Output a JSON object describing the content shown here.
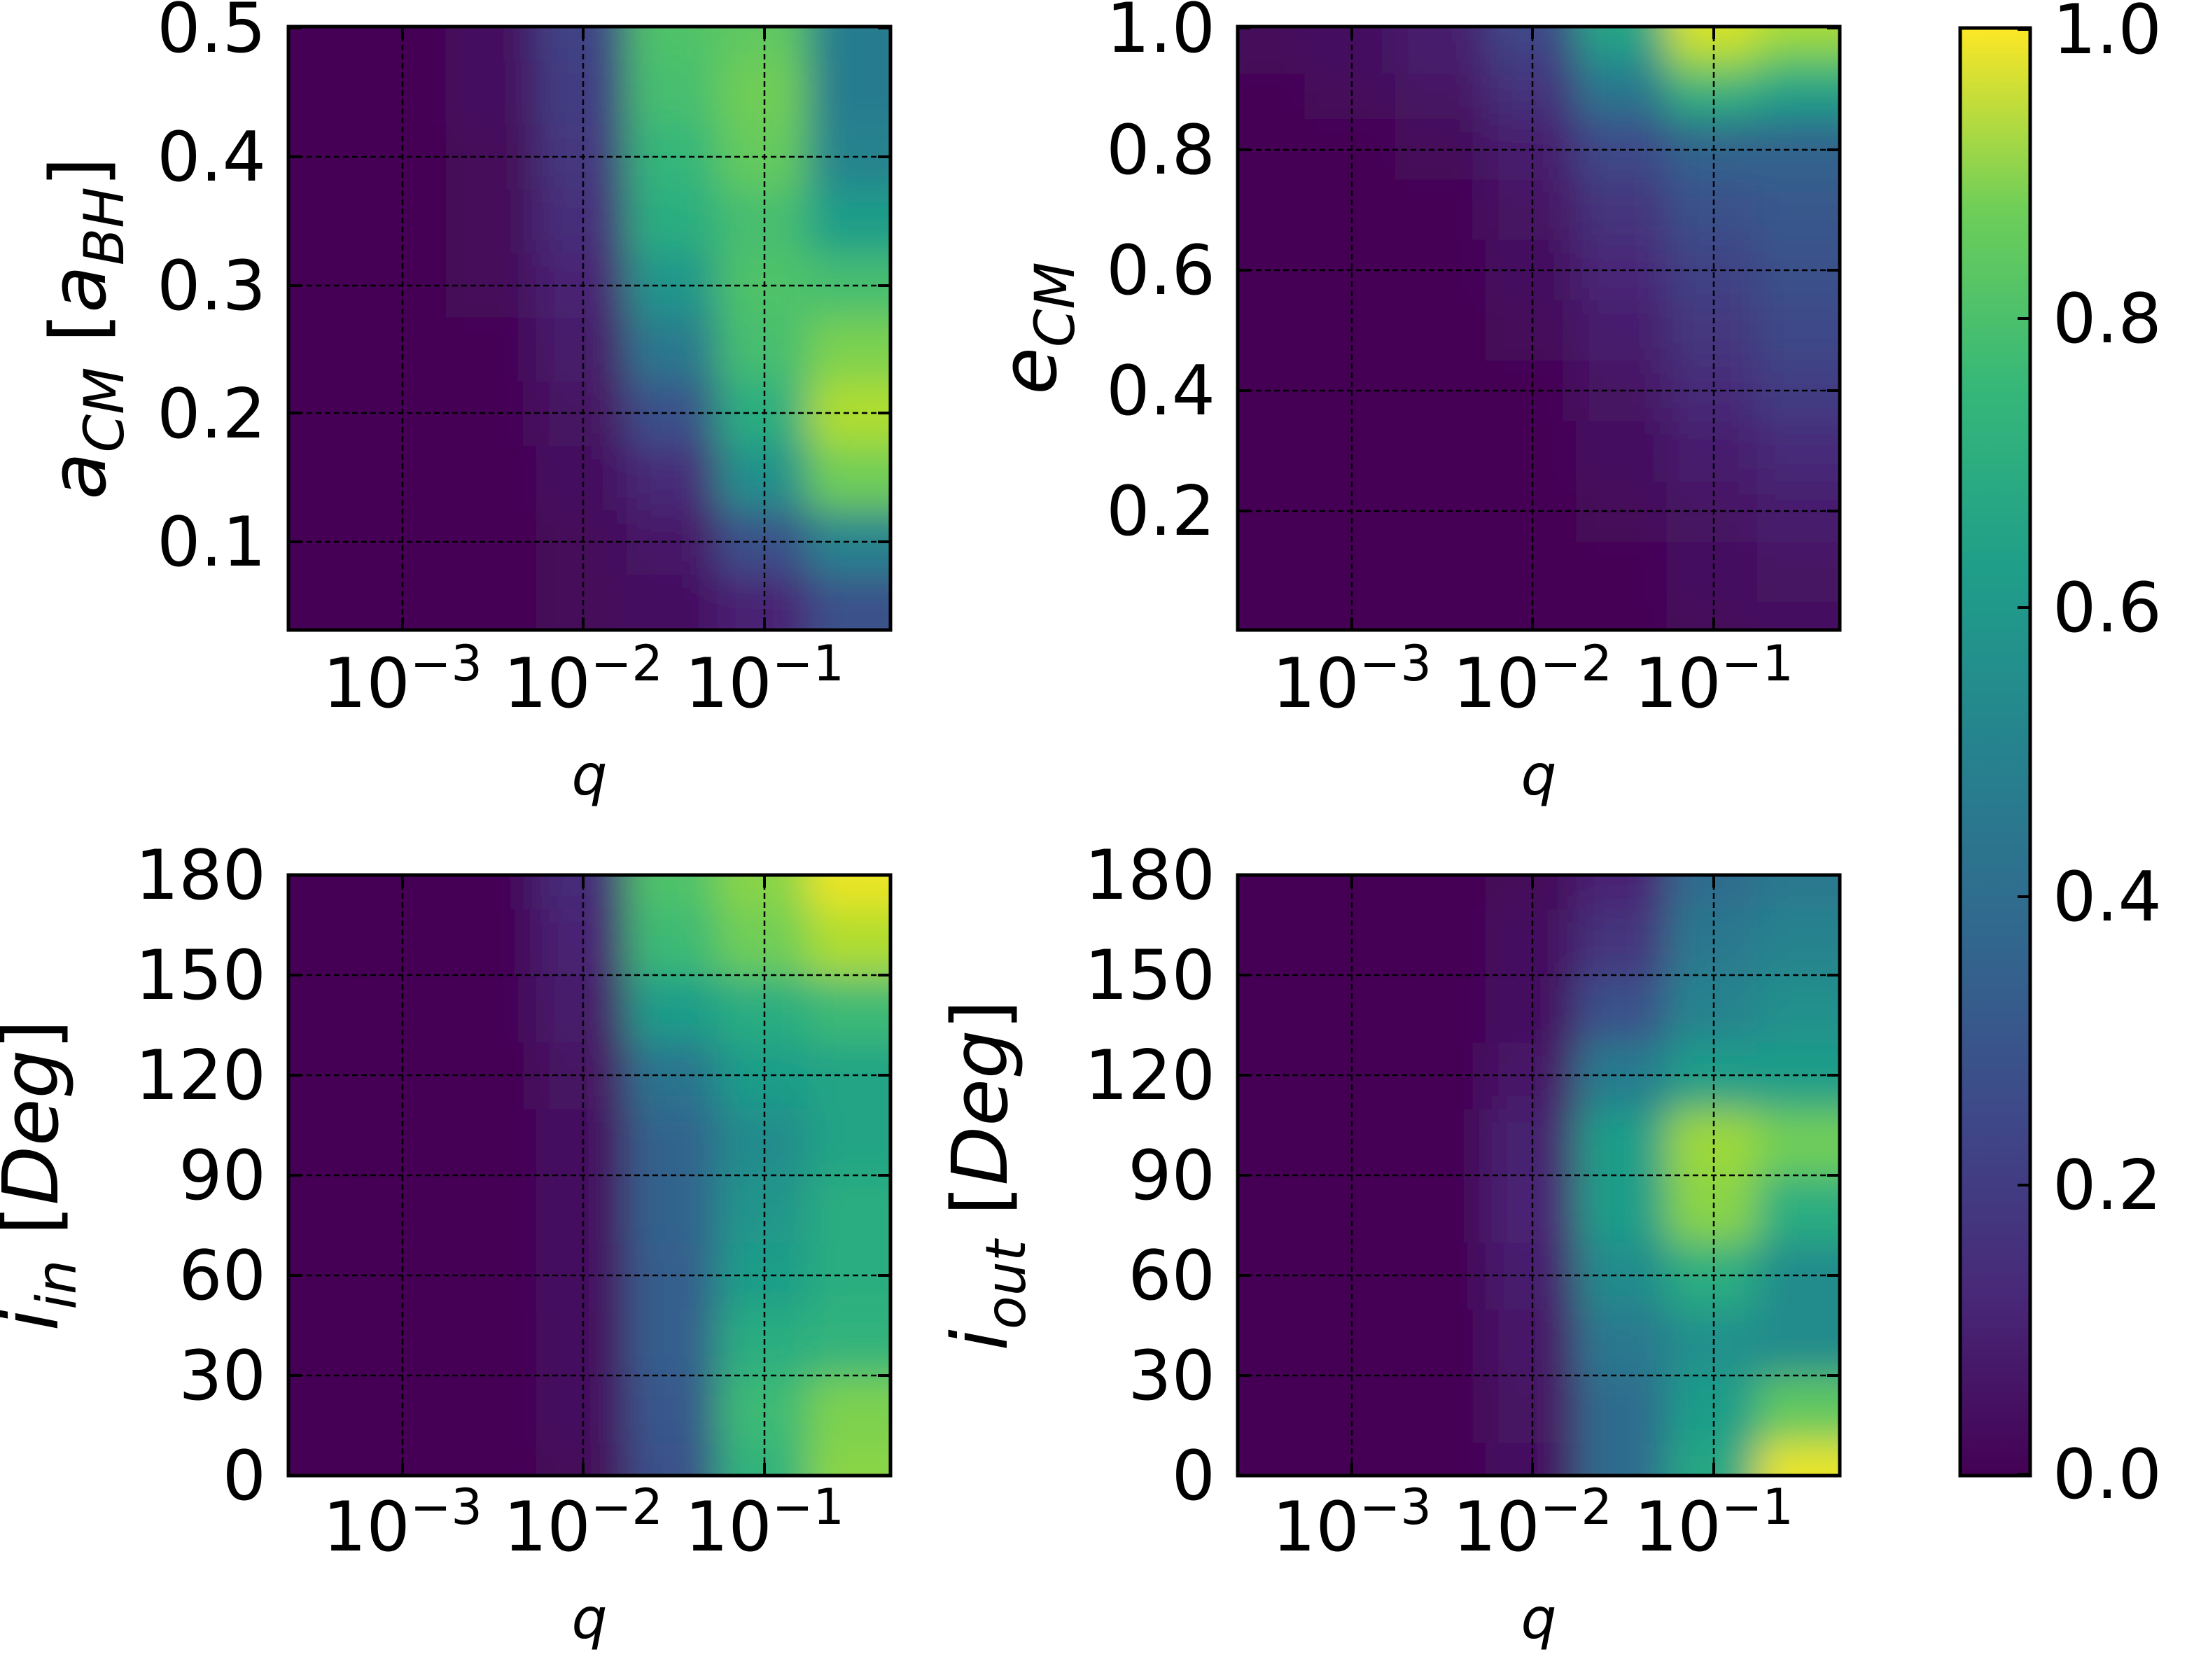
{
  "chart_data": [
    {
      "type": "heatmap",
      "panel": "top-left",
      "xlabel": "q",
      "ylabel": "a_CM [a_BH]",
      "xscale": "log",
      "x_ticks": [
        "10^-3",
        "10^-2",
        "10^-1"
      ],
      "y_ticks": [
        "0.1",
        "0.2",
        "0.3",
        "0.4",
        "0.5"
      ],
      "ylim": [
        0.03,
        0.5
      ],
      "grid": true,
      "x": [
        0.0003,
        0.001,
        0.003,
        0.01,
        0.03,
        0.1,
        0.3
      ],
      "y": [
        0.05,
        0.1,
        0.15,
        0.2,
        0.25,
        0.3,
        0.35,
        0.4,
        0.45,
        0.5
      ],
      "z": [
        [
          0.0,
          0.0,
          0.0,
          0.02,
          0.04,
          0.1,
          0.25
        ],
        [
          0.0,
          0.0,
          0.0,
          0.02,
          0.06,
          0.25,
          0.45
        ],
        [
          0.0,
          0.0,
          0.0,
          0.03,
          0.12,
          0.5,
          0.78
        ],
        [
          0.0,
          0.0,
          0.01,
          0.05,
          0.25,
          0.62,
          0.88
        ],
        [
          0.0,
          0.0,
          0.01,
          0.07,
          0.4,
          0.7,
          0.8
        ],
        [
          0.0,
          0.0,
          0.02,
          0.1,
          0.52,
          0.72,
          0.7
        ],
        [
          0.0,
          0.0,
          0.02,
          0.13,
          0.62,
          0.7,
          0.55
        ],
        [
          0.0,
          0.0,
          0.02,
          0.16,
          0.66,
          0.76,
          0.45
        ],
        [
          0.0,
          0.0,
          0.03,
          0.18,
          0.7,
          0.78,
          0.42
        ],
        [
          0.0,
          0.0,
          0.03,
          0.2,
          0.72,
          0.75,
          0.42
        ]
      ]
    },
    {
      "type": "heatmap",
      "panel": "top-right",
      "xlabel": "q",
      "ylabel": "e_CM",
      "xscale": "log",
      "x_ticks": [
        "10^-3",
        "10^-2",
        "10^-1"
      ],
      "y_ticks": [
        "0.2",
        "0.4",
        "0.6",
        "0.8",
        "1.0"
      ],
      "ylim": [
        0.0,
        1.0
      ],
      "grid": true,
      "x": [
        0.0003,
        0.001,
        0.003,
        0.01,
        0.03,
        0.1,
        0.3
      ],
      "y": [
        0.0,
        0.1,
        0.2,
        0.3,
        0.4,
        0.5,
        0.6,
        0.7,
        0.8,
        0.9,
        0.95,
        1.0
      ],
      "z": [
        [
          0.0,
          0.0,
          0.0,
          0.0,
          0.01,
          0.02,
          0.03
        ],
        [
          0.0,
          0.0,
          0.0,
          0.0,
          0.01,
          0.03,
          0.05
        ],
        [
          0.0,
          0.0,
          0.0,
          0.0,
          0.02,
          0.05,
          0.08
        ],
        [
          0.0,
          0.0,
          0.0,
          0.01,
          0.03,
          0.08,
          0.12
        ],
        [
          0.0,
          0.0,
          0.0,
          0.01,
          0.05,
          0.12,
          0.18
        ],
        [
          0.0,
          0.0,
          0.0,
          0.02,
          0.08,
          0.16,
          0.22
        ],
        [
          0.0,
          0.0,
          0.01,
          0.03,
          0.11,
          0.2,
          0.25
        ],
        [
          0.0,
          0.0,
          0.01,
          0.05,
          0.15,
          0.25,
          0.28
        ],
        [
          0.0,
          0.01,
          0.02,
          0.08,
          0.22,
          0.32,
          0.32
        ],
        [
          0.01,
          0.02,
          0.05,
          0.14,
          0.38,
          0.62,
          0.55
        ],
        [
          0.02,
          0.03,
          0.07,
          0.18,
          0.5,
          0.85,
          0.75
        ],
        [
          0.02,
          0.04,
          0.08,
          0.22,
          0.6,
          0.95,
          0.88
        ]
      ]
    },
    {
      "type": "heatmap",
      "panel": "bottom-left",
      "xlabel": "q",
      "ylabel": "i_in [Deg]",
      "xscale": "log",
      "x_ticks": [
        "10^-3",
        "10^-2",
        "10^-1"
      ],
      "y_ticks": [
        "0",
        "30",
        "60",
        "90",
        "120",
        "150",
        "180"
      ],
      "ylim": [
        0,
        180
      ],
      "grid": true,
      "x": [
        0.0003,
        0.001,
        0.003,
        0.01,
        0.03,
        0.1,
        0.3
      ],
      "y": [
        0,
        20,
        40,
        60,
        80,
        100,
        120,
        140,
        160,
        180
      ],
      "z": [
        [
          0.0,
          0.0,
          0.0,
          0.02,
          0.25,
          0.65,
          0.82
        ],
        [
          0.0,
          0.0,
          0.0,
          0.03,
          0.28,
          0.68,
          0.8
        ],
        [
          0.0,
          0.0,
          0.0,
          0.03,
          0.3,
          0.62,
          0.65
        ],
        [
          0.0,
          0.0,
          0.0,
          0.04,
          0.3,
          0.55,
          0.62
        ],
        [
          0.0,
          0.0,
          0.0,
          0.04,
          0.32,
          0.52,
          0.62
        ],
        [
          0.0,
          0.0,
          0.0,
          0.04,
          0.32,
          0.48,
          0.58
        ],
        [
          0.0,
          0.0,
          0.0,
          0.05,
          0.38,
          0.55,
          0.58
        ],
        [
          0.0,
          0.0,
          0.01,
          0.07,
          0.55,
          0.62,
          0.68
        ],
        [
          0.0,
          0.0,
          0.01,
          0.1,
          0.68,
          0.78,
          0.88
        ],
        [
          0.0,
          0.0,
          0.01,
          0.12,
          0.72,
          0.82,
          0.97
        ]
      ]
    },
    {
      "type": "heatmap",
      "panel": "bottom-right",
      "xlabel": "q",
      "ylabel": "i_out [Deg]",
      "xscale": "log",
      "x_ticks": [
        "10^-3",
        "10^-2",
        "10^-1"
      ],
      "y_ticks": [
        "0",
        "30",
        "60",
        "90",
        "120",
        "150",
        "180"
      ],
      "ylim": [
        0,
        180
      ],
      "grid": true,
      "x": [
        0.0003,
        0.001,
        0.003,
        0.01,
        0.03,
        0.1,
        0.3
      ],
      "y": [
        0,
        20,
        40,
        60,
        80,
        100,
        120,
        140,
        160,
        180
      ],
      "z": [
        [
          0.0,
          0.0,
          0.0,
          0.04,
          0.35,
          0.6,
          0.97
        ],
        [
          0.0,
          0.0,
          0.0,
          0.05,
          0.35,
          0.55,
          0.75
        ],
        [
          0.0,
          0.0,
          0.0,
          0.06,
          0.4,
          0.5,
          0.48
        ],
        [
          0.0,
          0.0,
          0.0,
          0.08,
          0.48,
          0.62,
          0.48
        ],
        [
          0.0,
          0.0,
          0.0,
          0.1,
          0.55,
          0.82,
          0.62
        ],
        [
          0.0,
          0.0,
          0.0,
          0.09,
          0.55,
          0.85,
          0.78
        ],
        [
          0.0,
          0.0,
          0.0,
          0.06,
          0.42,
          0.55,
          0.55
        ],
        [
          0.0,
          0.0,
          0.0,
          0.04,
          0.25,
          0.45,
          0.5
        ],
        [
          0.0,
          0.0,
          0.0,
          0.03,
          0.15,
          0.4,
          0.45
        ],
        [
          0.0,
          0.0,
          0.0,
          0.02,
          0.1,
          0.35,
          0.4
        ]
      ]
    }
  ],
  "colorbar": {
    "cmap": "viridis",
    "range": [
      0.0,
      1.0
    ],
    "ticks": [
      "0.0",
      "0.2",
      "0.4",
      "0.6",
      "0.8",
      "1.0"
    ]
  }
}
